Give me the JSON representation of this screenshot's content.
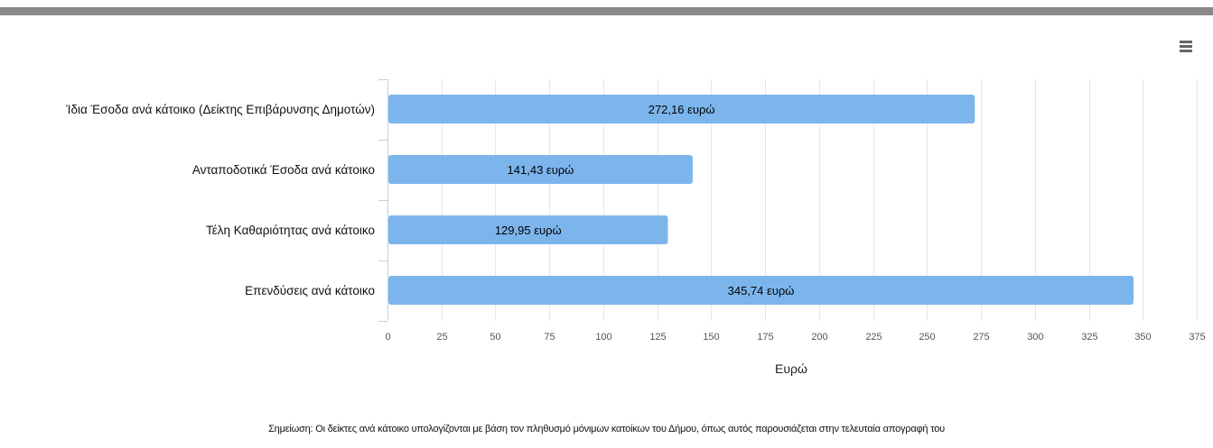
{
  "menu": {
    "icon": "hamburger-menu-icon"
  },
  "chart_data": {
    "type": "bar",
    "orientation": "horizontal",
    "categories": [
      "Ίδια Έσοδα ανά κάτοικο (Δείκτης Επιβάρυνσης Δημοτών)",
      "Ανταποδοτικά Έσοδα ανά κάτοικο",
      "Τέλη Καθαριότητας ανά κάτοικο",
      "Επενδύσεις ανά κάτοικο"
    ],
    "values": [
      272.16,
      141.43,
      129.95,
      345.74
    ],
    "data_labels": [
      "272,16 ευρώ",
      "141,43 ευρώ",
      "129,95 ευρώ",
      "345,74 ευρώ"
    ],
    "xlabel": "Ευρώ",
    "xlim": [
      0,
      375
    ],
    "xticks": [
      0,
      25,
      50,
      75,
      100,
      125,
      150,
      175,
      200,
      225,
      250,
      275,
      300,
      325,
      350,
      375
    ],
    "grid": true,
    "legend": "none",
    "bar_color": "#7cb5ec"
  },
  "note": {
    "text": "Σημείωση: Οι δείκτες ανά κάτοικο υπολογίζονται με βάση τον πληθυσμό μόνιμων κατοίκων του Δήμου, όπως αυτός παρουσιάζεται στην τελευταία απογραφή του"
  }
}
